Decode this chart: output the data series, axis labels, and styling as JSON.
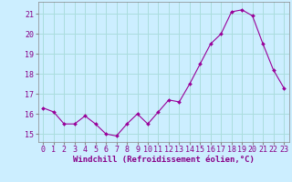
{
  "x": [
    0,
    1,
    2,
    3,
    4,
    5,
    6,
    7,
    8,
    9,
    10,
    11,
    12,
    13,
    14,
    15,
    16,
    17,
    18,
    19,
    20,
    21,
    22,
    23
  ],
  "y": [
    16.3,
    16.1,
    15.5,
    15.5,
    15.9,
    15.5,
    15.0,
    14.9,
    15.5,
    16.0,
    15.5,
    16.1,
    16.7,
    16.6,
    17.5,
    18.5,
    19.5,
    20.0,
    21.1,
    21.2,
    20.9,
    19.5,
    18.2,
    17.3
  ],
  "line_color": "#990099",
  "marker": "D",
  "marker_size": 2.0,
  "background_color": "#cceeff",
  "grid_color": "#aadddd",
  "xlabel": "Windchill (Refroidissement éolien,°C)",
  "xlabel_fontsize": 6.5,
  "tick_fontsize": 6.0,
  "ylim": [
    14.6,
    21.6
  ],
  "yticks": [
    15,
    16,
    17,
    18,
    19,
    20,
    21
  ],
  "xlim": [
    -0.5,
    23.5
  ],
  "xticks": [
    0,
    1,
    2,
    3,
    4,
    5,
    6,
    7,
    8,
    9,
    10,
    11,
    12,
    13,
    14,
    15,
    16,
    17,
    18,
    19,
    20,
    21,
    22,
    23
  ]
}
